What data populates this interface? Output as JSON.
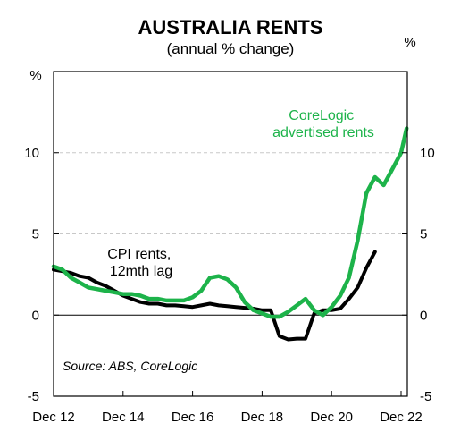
{
  "chart_data": {
    "type": "line",
    "title": "AUSTRALIA RENTS",
    "subtitle": "(annual % change)",
    "ylabel_left": "%",
    "ylabel_right": "%",
    "ylim": [
      -5,
      15
    ],
    "yticks": [
      -5,
      0,
      5,
      10
    ],
    "xlim": [
      2012.92,
      2023.1
    ],
    "xticks": [
      {
        "x": 2012.92,
        "label": "Dec 12"
      },
      {
        "x": 2014.92,
        "label": "Dec 14"
      },
      {
        "x": 2016.92,
        "label": "Dec 16"
      },
      {
        "x": 2018.92,
        "label": "Dec 18"
      },
      {
        "x": 2020.92,
        "label": "Dec 20"
      },
      {
        "x": 2022.92,
        "label": "Dec 22"
      }
    ],
    "grid": {
      "horizontal_dashed": true,
      "at": [
        5,
        10
      ]
    },
    "source": "Source: ABS, CoreLogic",
    "series": [
      {
        "name": "CPI rents, 12mth lag",
        "label_lines": [
          "CPI rents,",
          "12mth lag"
        ],
        "color": "#000000",
        "x": [
          2012.92,
          2013.17,
          2013.42,
          2013.67,
          2013.92,
          2014.17,
          2014.42,
          2014.67,
          2014.92,
          2015.17,
          2015.42,
          2015.67,
          2015.92,
          2016.17,
          2016.42,
          2016.67,
          2016.92,
          2017.17,
          2017.42,
          2017.67,
          2017.92,
          2018.17,
          2018.42,
          2018.67,
          2018.92,
          2019.17,
          2019.42,
          2019.67,
          2019.92,
          2020.17,
          2020.42,
          2020.67,
          2020.92,
          2021.17,
          2021.42,
          2021.67,
          2021.92,
          2022.17
        ],
        "y": [
          2.8,
          2.7,
          2.6,
          2.4,
          2.3,
          2.0,
          1.8,
          1.5,
          1.2,
          1.0,
          0.8,
          0.7,
          0.7,
          0.6,
          0.6,
          0.55,
          0.5,
          0.6,
          0.7,
          0.6,
          0.55,
          0.5,
          0.45,
          0.4,
          0.3,
          0.3,
          -1.3,
          -1.5,
          -1.45,
          -1.45,
          0.1,
          0.3,
          0.3,
          0.4,
          1.0,
          1.7,
          2.9,
          3.9
        ]
      },
      {
        "name": "CoreLogic advertised rents",
        "label_lines": [
          "CoreLogic",
          "advertised rents"
        ],
        "color": "#1db34a",
        "x": [
          2012.92,
          2013.17,
          2013.42,
          2013.67,
          2013.92,
          2014.17,
          2014.42,
          2014.67,
          2014.92,
          2015.17,
          2015.42,
          2015.67,
          2015.92,
          2016.17,
          2016.42,
          2016.67,
          2016.92,
          2017.17,
          2017.42,
          2017.67,
          2017.92,
          2018.17,
          2018.42,
          2018.67,
          2018.92,
          2019.17,
          2019.42,
          2019.67,
          2019.92,
          2020.17,
          2020.42,
          2020.67,
          2020.92,
          2021.17,
          2021.42,
          2021.67,
          2021.92,
          2022.17,
          2022.42,
          2022.67,
          2022.92,
          2023.08
        ],
        "y": [
          3.0,
          2.8,
          2.3,
          2.0,
          1.7,
          1.6,
          1.5,
          1.4,
          1.3,
          1.3,
          1.2,
          1.0,
          1.0,
          0.9,
          0.9,
          0.9,
          1.1,
          1.5,
          2.3,
          2.4,
          2.2,
          1.7,
          0.8,
          0.3,
          0.1,
          -0.1,
          -0.1,
          0.2,
          0.6,
          1.0,
          0.3,
          0.0,
          0.5,
          1.2,
          2.3,
          4.6,
          7.5,
          8.5,
          8.0,
          9.0,
          10.0,
          11.5
        ]
      }
    ]
  }
}
